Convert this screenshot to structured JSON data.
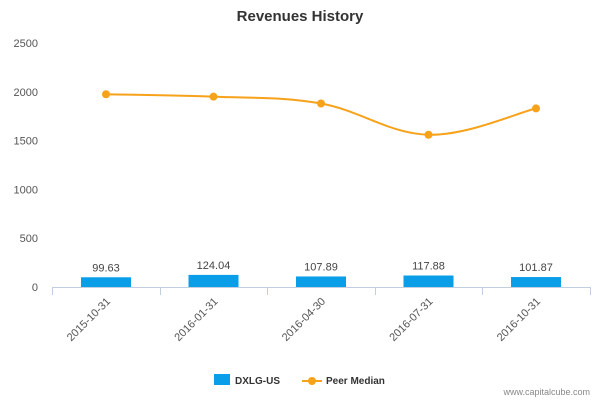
{
  "chart_data": {
    "type": "bar",
    "title": "Revenues History",
    "categories": [
      "2015-10-31",
      "2016-01-31",
      "2016-04-30",
      "2016-07-31",
      "2016-10-31"
    ],
    "ylim": [
      0,
      2500
    ],
    "yticks": [
      0,
      500,
      1000,
      1500,
      2000,
      2500
    ],
    "grid": false,
    "legend_position": "bottom",
    "series": [
      {
        "name": "DXLG-US",
        "type": "bar",
        "color": "#0a9ee8",
        "values": [
          99.63,
          124.04,
          107.89,
          117.88,
          101.87
        ],
        "labels": [
          "99.63",
          "124.04",
          "107.89",
          "117.88",
          "101.87"
        ]
      },
      {
        "name": "Peer Median",
        "type": "line",
        "color": "#f7a21b",
        "values": [
          1975,
          1950,
          1880,
          1560,
          1830
        ]
      }
    ]
  },
  "footer": {
    "source": "www.capitalcube.com"
  }
}
